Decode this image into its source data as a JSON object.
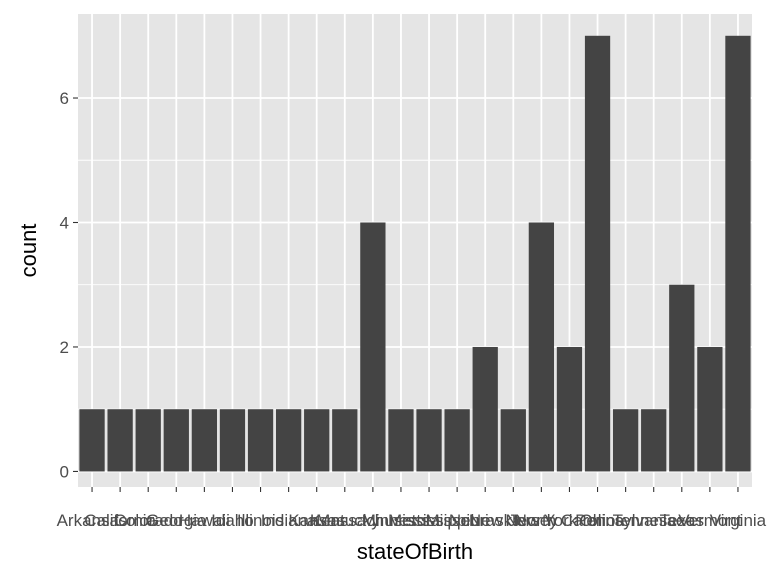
{
  "chart_data": {
    "type": "bar",
    "xlabel": "stateOfBirth",
    "ylabel": "count",
    "ylim": [
      -0.25,
      7.35
    ],
    "yticks": [
      0,
      2,
      4,
      6
    ],
    "grid": true,
    "colors": {
      "panel": "#E5E5E5",
      "grid_major": "#FFFFFF",
      "bar": "#444444",
      "tick": "#333333",
      "tick_label": "#4D4D4D"
    },
    "categories": [
      "Arkansas",
      "California",
      "Colorado",
      "Georgia",
      "Hawaii",
      "Idaho",
      "Illinois",
      "Indiana",
      "Kansas",
      "Kentucky",
      "Massachusetts",
      "Minnesota",
      "Mississippi",
      "Missouri",
      "Nebraska",
      "New Jersey",
      "New York",
      "North Carolina",
      "Ohio",
      "Pennsylvania",
      "Tennessee",
      "Texas",
      "Vermont",
      "Virginia"
    ],
    "values": [
      1,
      1,
      1,
      1,
      1,
      1,
      1,
      1,
      1,
      1,
      4,
      1,
      1,
      1,
      2,
      1,
      4,
      2,
      7,
      1,
      1,
      3,
      2,
      7
    ]
  }
}
